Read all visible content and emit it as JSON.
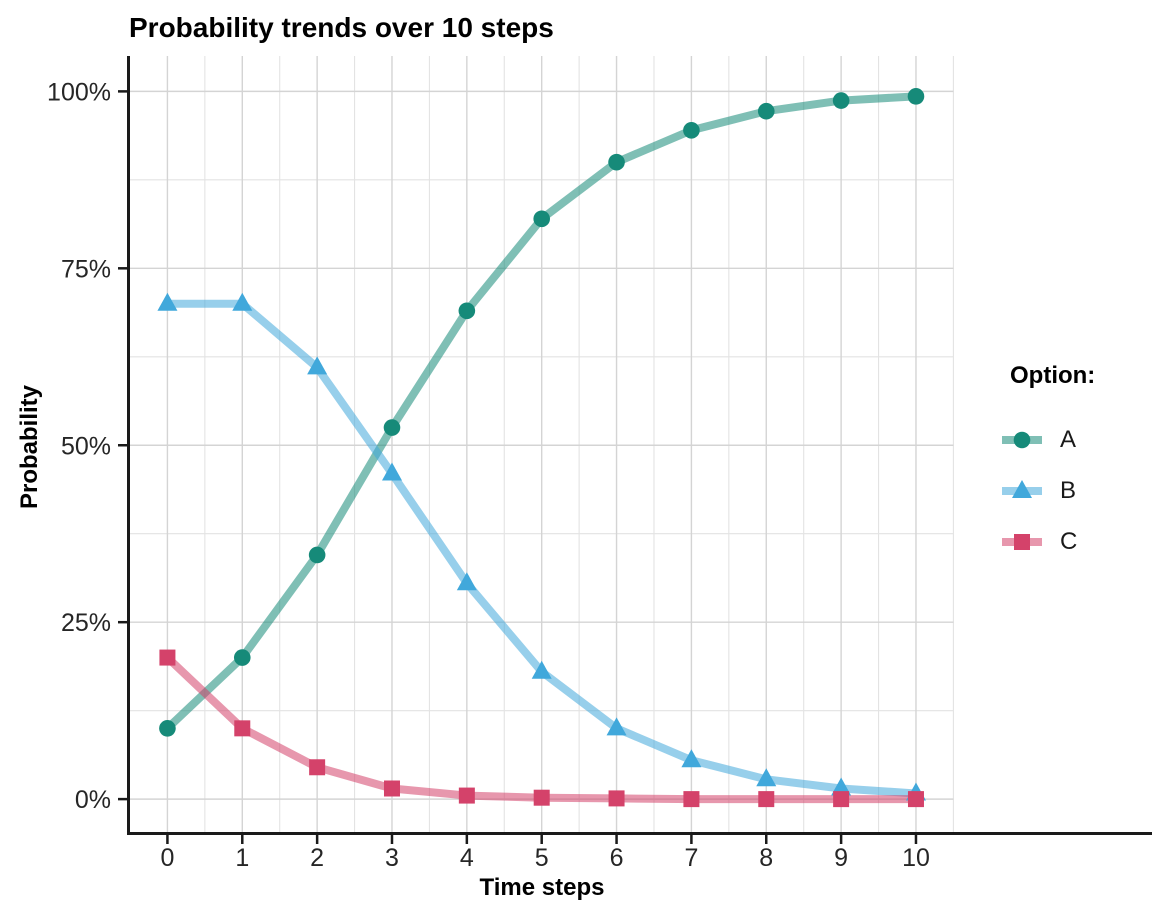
{
  "legend": {
    "title": "Option:"
  },
  "chart_data": {
    "type": "line",
    "title": "Probability trends over 10 steps",
    "xlabel": "Time steps",
    "ylabel": "Probability",
    "x": [
      0,
      1,
      2,
      3,
      4,
      5,
      6,
      7,
      8,
      9,
      10
    ],
    "series": [
      {
        "name": "A",
        "marker": "circle",
        "color": "#168A79",
        "values": [
          10,
          20,
          34.5,
          52.5,
          69,
          82,
          90,
          94.5,
          97.2,
          98.7,
          99.3
        ]
      },
      {
        "name": "B",
        "marker": "triangle",
        "color": "#41A8DB",
        "values": [
          70,
          70,
          61,
          46,
          30.5,
          18,
          10,
          5.5,
          2.8,
          1.5,
          0.8
        ]
      },
      {
        "name": "C",
        "marker": "square",
        "color": "#D4426A",
        "values": [
          20,
          10,
          4.5,
          1.5,
          0.5,
          0.2,
          0.1,
          0,
          0,
          0,
          0
        ]
      }
    ],
    "xlim": [
      -0.5,
      10.5
    ],
    "ylim": [
      -5,
      105
    ],
    "x_major_breaks": [
      0,
      1,
      2,
      3,
      4,
      5,
      6,
      7,
      8,
      9,
      10
    ],
    "x_tick_labels": [
      "0",
      "1",
      "2",
      "3",
      "4",
      "5",
      "6",
      "7",
      "8",
      "9",
      "10"
    ],
    "y_major_breaks": [
      0,
      25,
      50,
      75,
      100
    ],
    "y_tick_labels": [
      "0%",
      "25%",
      "50%",
      "75%",
      "100%"
    ],
    "y_minor_breaks": [
      12.5,
      37.5,
      62.5,
      87.5
    ],
    "x_minor_breaks": [
      0.5,
      1.5,
      2.5,
      3.5,
      4.5,
      5.5,
      6.5,
      7.5,
      8.5,
      9.5,
      10.5
    ],
    "grid": "major+minor",
    "legend_position": "right",
    "line_alpha": 0.55,
    "line_width": 8
  },
  "style": {
    "background": "#FFFFFF",
    "grid_major_color": "#D4D4D4",
    "grid_minor_color": "#E3E3E3",
    "axis_color": "#1A1A1A",
    "tick_label_color": "#262626",
    "text_color": "#000000"
  }
}
